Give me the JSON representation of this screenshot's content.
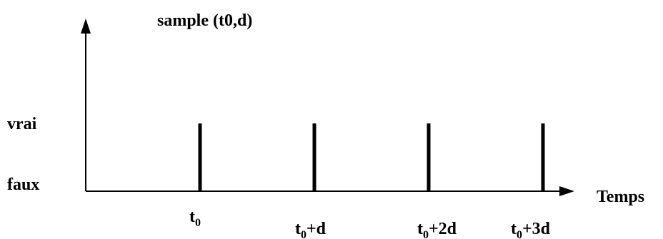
{
  "title": "sample (t0,d)",
  "y_levels": {
    "true_label": "vrai",
    "false_label": "faux"
  },
  "x_axis_label": "Temps",
  "ticks": [
    {
      "base": "t",
      "sub": "0",
      "suffix": ""
    },
    {
      "base": "t",
      "sub": "0",
      "suffix": "+d"
    },
    {
      "base": "t",
      "sub": "0",
      "suffix": "+2d"
    },
    {
      "base": "t",
      "sub": "0",
      "suffix": "+3d"
    }
  ],
  "colors": {
    "ink": "#000000",
    "background": "#ffffff"
  }
}
